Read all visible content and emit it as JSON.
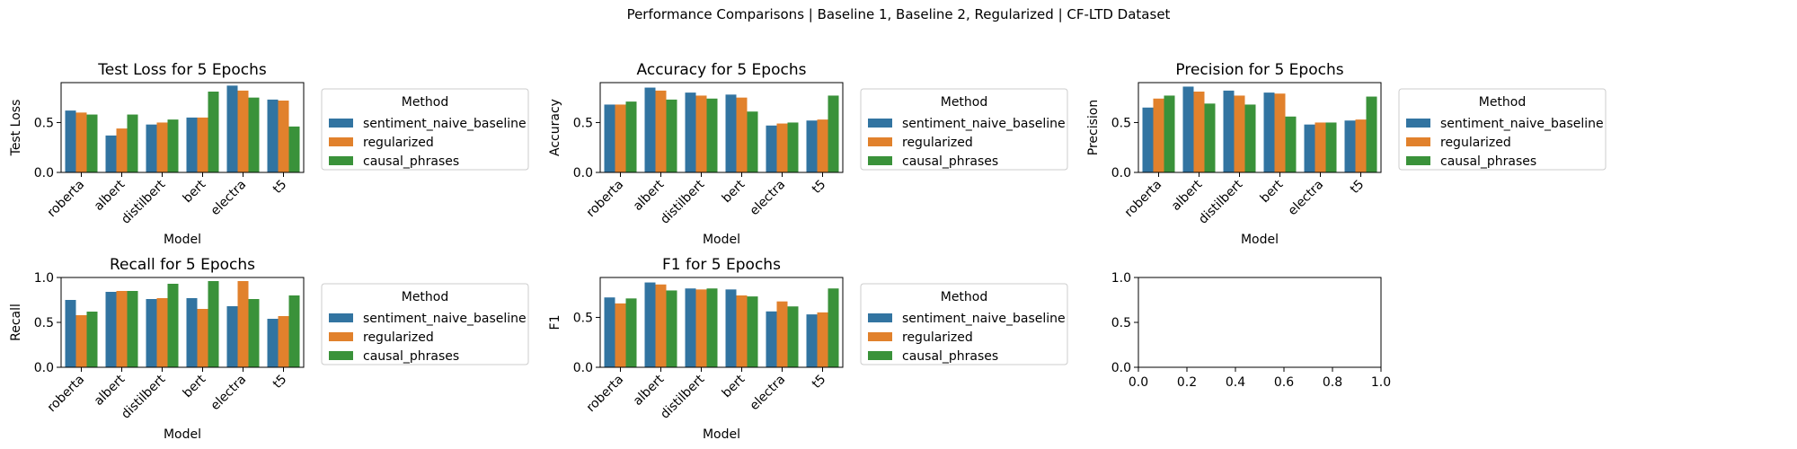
{
  "figure": {
    "suptitle": "Performance Comparisons | Baseline 1, Baseline 2, Regularized | CF-LTD Dataset"
  },
  "colors": {
    "sentiment_naive_baseline": "#3274a1",
    "regularized": "#e1812c",
    "causal_phrases": "#3a923a"
  },
  "chart_data": [
    {
      "type": "bar",
      "title": "Test Loss for 5 Epochs",
      "xlabel": "Model",
      "ylabel": "Test Loss",
      "categories": [
        "roberta",
        "albert",
        "distilbert",
        "bert",
        "electra",
        "t5"
      ],
      "ylim": [
        0,
        0.9
      ],
      "yticks": [
        "0.0",
        "0.5"
      ],
      "legend": {
        "title": "Method",
        "placement": "outside-right"
      },
      "series": [
        {
          "name": "sentiment_naive_baseline",
          "values": [
            0.62,
            0.37,
            0.48,
            0.55,
            0.87,
            0.73
          ]
        },
        {
          "name": "regularized",
          "values": [
            0.6,
            0.44,
            0.5,
            0.55,
            0.82,
            0.72
          ]
        },
        {
          "name": "causal_phrases",
          "values": [
            0.58,
            0.58,
            0.53,
            0.81,
            0.75,
            0.46
          ]
        }
      ]
    },
    {
      "type": "bar",
      "title": "Accuracy for 5 Epochs",
      "xlabel": "Model",
      "ylabel": "Accuracy",
      "categories": [
        "roberta",
        "albert",
        "distilbert",
        "bert",
        "electra",
        "t5"
      ],
      "ylim": [
        0,
        0.9
      ],
      "yticks": [
        "0.0",
        "0.5"
      ],
      "legend": {
        "title": "Method",
        "placement": "outside-right"
      },
      "series": [
        {
          "name": "sentiment_naive_baseline",
          "values": [
            0.68,
            0.85,
            0.8,
            0.78,
            0.47,
            0.52
          ]
        },
        {
          "name": "regularized",
          "values": [
            0.68,
            0.82,
            0.77,
            0.75,
            0.49,
            0.53
          ]
        },
        {
          "name": "causal_phrases",
          "values": [
            0.71,
            0.73,
            0.74,
            0.61,
            0.5,
            0.77
          ]
        }
      ]
    },
    {
      "type": "bar",
      "title": "Precision for 5 Epochs",
      "xlabel": "Model",
      "ylabel": "Precision",
      "categories": [
        "roberta",
        "albert",
        "distilbert",
        "bert",
        "electra",
        "t5"
      ],
      "ylim": [
        0,
        0.9
      ],
      "yticks": [
        "0.0",
        "0.5"
      ],
      "legend": {
        "title": "Method",
        "placement": "outside-right"
      },
      "series": [
        {
          "name": "sentiment_naive_baseline",
          "values": [
            0.65,
            0.86,
            0.82,
            0.8,
            0.48,
            0.52
          ]
        },
        {
          "name": "regularized",
          "values": [
            0.74,
            0.81,
            0.77,
            0.79,
            0.5,
            0.53
          ]
        },
        {
          "name": "causal_phrases",
          "values": [
            0.77,
            0.69,
            0.68,
            0.56,
            0.5,
            0.76
          ]
        }
      ]
    },
    {
      "type": "bar",
      "title": "Recall for 5 Epochs",
      "xlabel": "Model",
      "ylabel": "Recall",
      "categories": [
        "roberta",
        "albert",
        "distilbert",
        "bert",
        "electra",
        "t5"
      ],
      "ylim": [
        0,
        1.0
      ],
      "yticks": [
        "0.0",
        "0.5",
        "1.0"
      ],
      "legend": {
        "title": "Method",
        "placement": "outside-right"
      },
      "series": [
        {
          "name": "sentiment_naive_baseline",
          "values": [
            0.75,
            0.84,
            0.76,
            0.77,
            0.68,
            0.54
          ]
        },
        {
          "name": "regularized",
          "values": [
            0.58,
            0.85,
            0.77,
            0.65,
            0.96,
            0.57
          ]
        },
        {
          "name": "causal_phrases",
          "values": [
            0.62,
            0.85,
            0.93,
            0.96,
            0.76,
            0.8
          ]
        }
      ]
    },
    {
      "type": "bar",
      "title": "F1 for 5 Epochs",
      "xlabel": "Model",
      "ylabel": "F1",
      "categories": [
        "roberta",
        "albert",
        "distilbert",
        "bert",
        "electra",
        "t5"
      ],
      "ylim": [
        0,
        0.9
      ],
      "yticks": [
        "0.0",
        "0.5"
      ],
      "legend": {
        "title": "Method",
        "placement": "outside-right"
      },
      "series": [
        {
          "name": "sentiment_naive_baseline",
          "values": [
            0.7,
            0.85,
            0.79,
            0.78,
            0.56,
            0.53
          ]
        },
        {
          "name": "regularized",
          "values": [
            0.64,
            0.83,
            0.78,
            0.72,
            0.66,
            0.55
          ]
        },
        {
          "name": "causal_phrases",
          "values": [
            0.69,
            0.77,
            0.79,
            0.71,
            0.61,
            0.79
          ]
        }
      ]
    },
    {
      "type": "empty",
      "title": "",
      "xlim": [
        0,
        1
      ],
      "ylim": [
        0,
        1
      ],
      "xticks": [
        "0.0",
        "0.2",
        "0.4",
        "0.6",
        "0.8",
        "1.0"
      ],
      "yticks": [
        "0.0",
        "0.5",
        "1.0"
      ]
    }
  ]
}
